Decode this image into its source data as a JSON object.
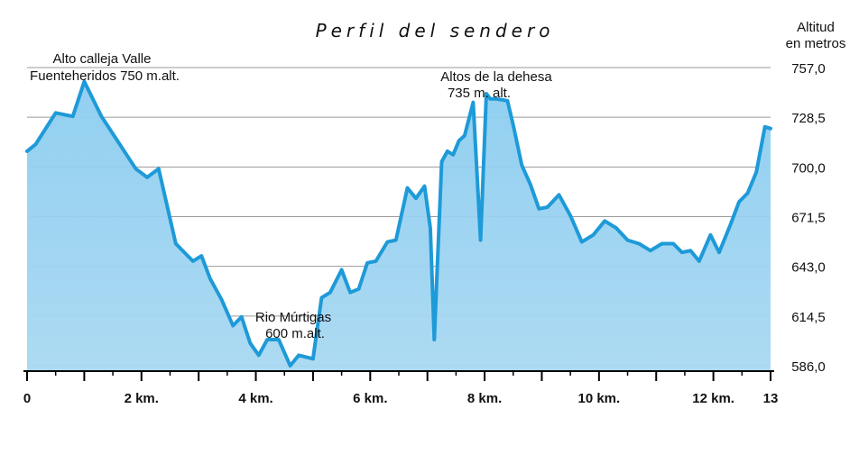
{
  "chart_data": {
    "type": "area",
    "title": "Perfil del sendero",
    "ylabel_lines": [
      "Altitud",
      "en metros"
    ],
    "xlabel": "",
    "xlim": [
      0,
      13
    ],
    "ylim": [
      579,
      768
    ],
    "y_ticks": [
      586.0,
      614.5,
      643.0,
      671.5,
      700.0,
      728.5,
      757.0
    ],
    "y_tick_labels": [
      "586,0",
      "614,5",
      "643,0",
      "671,5",
      "700,0",
      "728,5",
      "757,0"
    ],
    "x_ticks": [
      0,
      2,
      4,
      6,
      8,
      10,
      12,
      13
    ],
    "x_tick_labels": [
      "0",
      "2 km.",
      "4 km.",
      "6 km.",
      "8 km.",
      "10 km.",
      "12 km.",
      "13"
    ],
    "grid": "horizontal",
    "colors": {
      "line": "#1e9ad8",
      "fill_top": "#8ccdf0",
      "fill_bottom": "#a8d8f2",
      "grid": "#9a9a9a"
    },
    "series": [
      {
        "x": [
          0,
          0.15,
          0.5,
          0.8,
          1.0,
          1.3,
          1.6,
          1.9,
          2.1,
          2.3,
          2.6,
          2.9,
          3.05,
          3.2,
          3.4,
          3.6,
          3.75,
          3.9,
          4.05,
          4.2,
          4.4,
          4.6,
          4.75,
          5.0,
          5.15,
          5.3,
          5.5,
          5.65,
          5.8,
          5.95,
          6.1,
          6.3,
          6.45,
          6.65,
          6.8,
          6.95,
          7.05,
          7.12,
          7.25,
          7.35,
          7.45,
          7.55,
          7.65,
          7.8,
          7.93,
          8.03,
          8.1,
          8.2,
          8.4,
          8.5,
          8.65,
          8.8,
          8.95,
          9.1,
          9.3,
          9.5,
          9.7,
          9.9,
          10.1,
          10.3,
          10.5,
          10.7,
          10.9,
          11.1,
          11.3,
          11.45,
          11.6,
          11.75,
          11.95,
          12.1,
          12.3,
          12.45,
          12.6,
          12.75,
          12.9,
          13.0
        ],
        "y": [
          709,
          713,
          731,
          729,
          749,
          729,
          714,
          699,
          694,
          699,
          656,
          646,
          649,
          636,
          624,
          609,
          614,
          599,
          592,
          601,
          601,
          586,
          592,
          590,
          625,
          628,
          641,
          628,
          630,
          645,
          646,
          657,
          658,
          688,
          682,
          689,
          665,
          601,
          703,
          709,
          707,
          715,
          718,
          737,
          658,
          742,
          739,
          739,
          738,
          724,
          701,
          690,
          676,
          677,
          684,
          672,
          657,
          661,
          669,
          665,
          658,
          656,
          652,
          656,
          656,
          651,
          652,
          646,
          661,
          651,
          667,
          680,
          685,
          697,
          723,
          722
        ]
      }
    ],
    "annotations": [
      {
        "lines": [
          "Alto calleja Valle",
          "Fuenteheridos 750 m.alt."
        ]
      },
      {
        "lines": [
          "Altos de la dehesa",
          "735 m. alt."
        ]
      },
      {
        "lines": [
          "Rio Múrtigas",
          "600 m.alt."
        ]
      }
    ]
  }
}
